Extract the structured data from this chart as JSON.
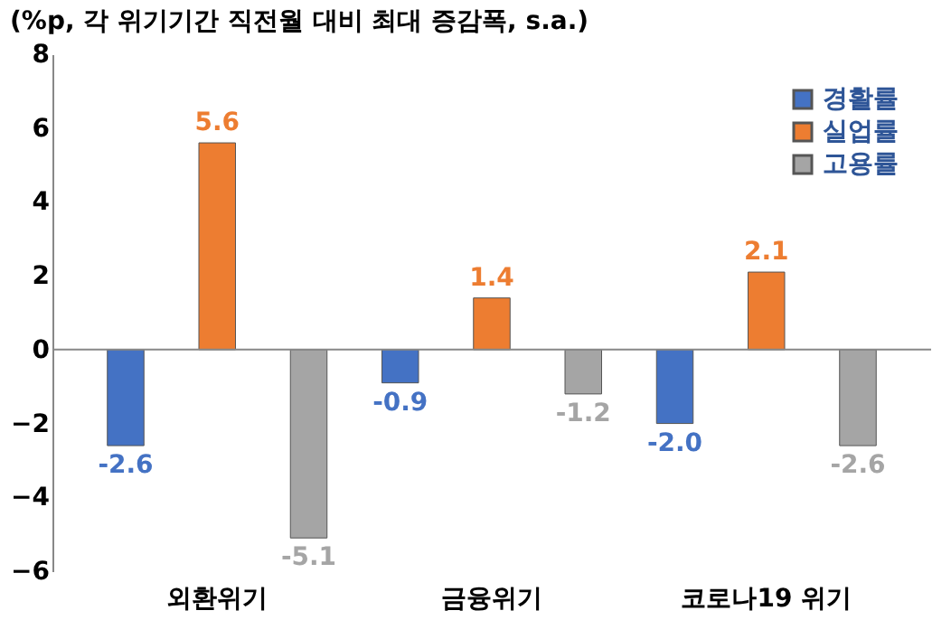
{
  "chart_data": {
    "type": "bar",
    "title": "(%p, 각 위기기간 직전월 대비 최대 증감폭, s.a.)",
    "categories": [
      "외환위기",
      "금융위기",
      "코로나19 위기"
    ],
    "series": [
      {
        "name": "경활률",
        "color": "#4472c4",
        "values": [
          -2.6,
          -0.9,
          -2.0
        ],
        "value_labels": [
          "-2.6",
          "-0.9",
          "-2.0"
        ]
      },
      {
        "name": "실업률",
        "color": "#ed7d31",
        "values": [
          5.6,
          1.4,
          2.1
        ],
        "value_labels": [
          "5.6",
          "1.4",
          "2.1"
        ]
      },
      {
        "name": "고용률",
        "color": "#a5a5a5",
        "values": [
          -5.1,
          -1.2,
          -2.6
        ],
        "value_labels": [
          "-5.1",
          "-1.2",
          "-2.6"
        ]
      }
    ],
    "ref_lines": [
      {
        "axis": "y",
        "value": 0,
        "color": "#888888"
      }
    ],
    "ylim": [
      -6,
      8
    ],
    "yticks": [
      -6,
      -4,
      -2,
      0,
      2,
      4,
      6,
      8
    ],
    "grid": false,
    "legend": "top right"
  }
}
